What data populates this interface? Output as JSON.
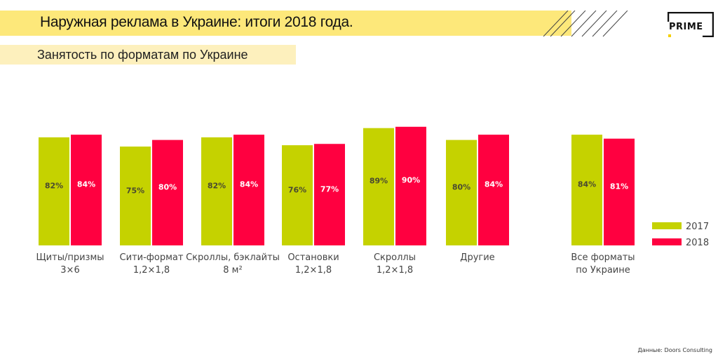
{
  "header": {
    "title": "Наружная реклама в Украине: итоги 2018 года.",
    "subtitle": "Занятость по форматам по Украине",
    "logo": "PRIME"
  },
  "source": "Данные: Doors Consulting",
  "colors": {
    "2017": "#c5d200",
    "2018": "#ff0040",
    "title_band": "#fde87a"
  },
  "chart_data": {
    "type": "bar",
    "categories": [
      [
        "Щиты/призмы",
        "3×6"
      ],
      [
        "Сити-формат",
        "1,2×1,8"
      ],
      [
        "Скроллы, бэклайты",
        "8 м²"
      ],
      [
        "Остановки",
        "1,2×1,8"
      ],
      [
        "Скроллы",
        "1,2×1,8"
      ],
      [
        "Другие"
      ],
      [
        "Все форматы",
        "по Украине"
      ]
    ],
    "series": [
      {
        "name": "2017",
        "values": [
          82,
          75,
          82,
          76,
          89,
          80,
          84
        ],
        "labels": [
          "82%",
          "75%",
          "82%",
          "76%",
          "89%",
          "80%",
          "84%"
        ]
      },
      {
        "name": "2018",
        "values": [
          84,
          80,
          84,
          77,
          90,
          84,
          81
        ],
        "labels": [
          "84%",
          "80%",
          "84%",
          "77%",
          "90%",
          "84%",
          "81%"
        ]
      }
    ],
    "legend": "right",
    "grid": false,
    "ylim": [
      0,
      100
    ]
  }
}
